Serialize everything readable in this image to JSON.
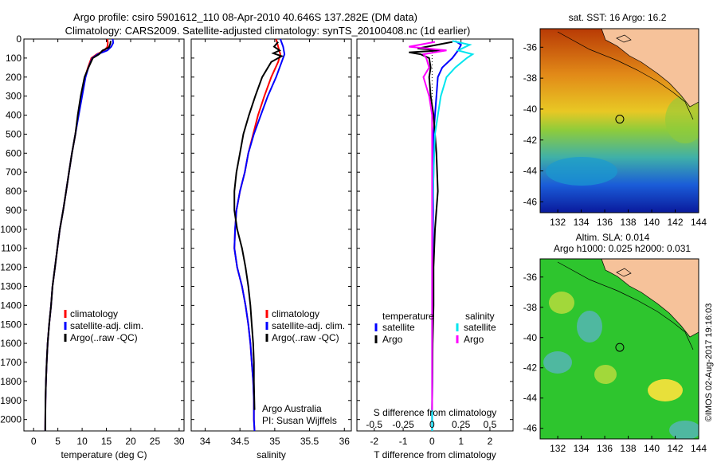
{
  "header": {
    "line1": "Argo profile: csiro 5901612_110 08-Apr-2010 40.646S 137.282E (DM data)",
    "line2": "Climatology: CARS2009. Satellite-adjusted climatology: synTS_20100408.nc (1d earlier)"
  },
  "colors": {
    "climatology": "#ff0000",
    "satellite": "#0000ff",
    "argo": "#000000",
    "satellite_salinity": "#00e5ee",
    "argo_salinity": "#ff00ff"
  },
  "chart_data": [
    {
      "type": "line",
      "xlabel": "temperature (deg C)",
      "ylabel": "",
      "xlim": [
        -2,
        31
      ],
      "ylim": [
        2060,
        0
      ],
      "xticks": [
        0,
        5,
        10,
        15,
        20,
        25,
        30
      ],
      "yticks": [
        0,
        100,
        200,
        300,
        400,
        500,
        600,
        700,
        800,
        900,
        1000,
        1100,
        1200,
        1300,
        1400,
        1500,
        1600,
        1700,
        1800,
        1900,
        2000
      ],
      "legend": [
        "climatology",
        "satellite-adj. clim.",
        "Argo(..raw -QC)"
      ],
      "legend_position": "bottom-right",
      "series": [
        {
          "name": "climatology",
          "color": "#ff0000",
          "x": [
            15.2,
            15.3,
            15.2,
            14.6,
            13.0,
            11.9,
            11.2,
            10.6,
            9.9,
            9.2,
            8.6,
            7.9,
            7.3,
            6.7,
            6.1,
            5.4,
            4.9,
            4.4,
            3.9,
            3.6,
            3.2,
            2.9,
            2.7,
            2.55,
            2.45,
            2.4
          ],
          "y": [
            0,
            20,
            40,
            60,
            80,
            100,
            150,
            200,
            300,
            400,
            500,
            600,
            700,
            800,
            900,
            1000,
            1100,
            1200,
            1300,
            1400,
            1500,
            1600,
            1700,
            1800,
            1900,
            2060
          ]
        },
        {
          "name": "satellite-adj. clim.",
          "color": "#0000ff",
          "x": [
            16.3,
            16.4,
            16.0,
            15.2,
            13.2,
            12.1,
            11.3,
            10.7,
            10.0,
            9.3,
            8.6,
            7.9,
            7.3,
            6.7,
            6.1,
            5.4,
            4.9,
            4.4,
            3.9,
            3.6,
            3.2,
            2.9,
            2.7,
            2.55,
            2.45,
            2.4
          ],
          "y": [
            0,
            20,
            40,
            60,
            80,
            100,
            150,
            200,
            300,
            400,
            500,
            600,
            700,
            800,
            900,
            1000,
            1100,
            1200,
            1300,
            1400,
            1500,
            1600,
            1700,
            1800,
            1900,
            2060
          ]
        },
        {
          "name": "Argo(..raw -QC)",
          "color": "#000000",
          "x": [
            15.9,
            15.8,
            15.5,
            14.2,
            13.5,
            12.2,
            11.3,
            10.5,
            9.7,
            9.1,
            8.6,
            7.9,
            7.3,
            6.7,
            6.1,
            5.4,
            4.9,
            4.4,
            3.9,
            3.6,
            3.2,
            2.9,
            2.7,
            2.55,
            2.45,
            2.4
          ],
          "y": [
            10,
            25,
            45,
            60,
            80,
            100,
            150,
            200,
            300,
            400,
            500,
            600,
            700,
            800,
            900,
            1000,
            1100,
            1200,
            1300,
            1400,
            1500,
            1600,
            1700,
            1800,
            1900,
            2060
          ]
        }
      ]
    },
    {
      "type": "line",
      "xlabel": "salinity",
      "ylabel": "",
      "xlim": [
        33.8,
        36.1
      ],
      "ylim": [
        2060,
        0
      ],
      "xticks": [
        34,
        34.5,
        35,
        35.5,
        36
      ],
      "legend": [
        "climatology",
        "satellite-adj. clim.",
        "Argo(..raw -QC)"
      ],
      "legend_position": "bottom-right",
      "annotation": [
        "Argo Australia",
        "PI: Susan Wijffels"
      ],
      "series": [
        {
          "name": "climatology",
          "color": "#ff0000",
          "x": [
            35.02,
            35.05,
            35.08,
            35.05,
            34.95,
            34.85,
            34.76,
            34.69,
            34.62,
            34.57,
            34.5,
            34.45,
            34.43,
            34.42,
            34.46,
            34.53,
            34.58,
            34.62,
            34.65,
            34.67,
            34.69,
            34.7,
            34.7,
            34.71
          ],
          "y": [
            0,
            40,
            80,
            120,
            200,
            300,
            400,
            500,
            600,
            700,
            800,
            900,
            1000,
            1100,
            1200,
            1300,
            1400,
            1500,
            1600,
            1700,
            1800,
            1900,
            2000,
            2060
          ]
        },
        {
          "name": "satellite-adj. clim.",
          "color": "#0000ff",
          "x": [
            35.08,
            35.12,
            35.14,
            35.1,
            35.02,
            34.9,
            34.8,
            34.7,
            34.62,
            34.57,
            34.5,
            34.45,
            34.43,
            34.42,
            34.46,
            34.53,
            34.58,
            34.62,
            34.65,
            34.67,
            34.69,
            34.7,
            34.7,
            34.71
          ],
          "y": [
            0,
            40,
            80,
            120,
            200,
            300,
            400,
            500,
            600,
            700,
            800,
            900,
            1000,
            1100,
            1200,
            1300,
            1400,
            1500,
            1600,
            1700,
            1800,
            1900,
            2000,
            2060
          ]
        },
        {
          "name": "Argo(..raw -QC)",
          "color": "#000000",
          "x": [
            35.05,
            34.99,
            35.07,
            34.98,
            35.1,
            34.95,
            34.82,
            34.72,
            34.63,
            34.55,
            34.5,
            34.45,
            34.42,
            34.42,
            34.46,
            34.53,
            34.58,
            34.62,
            34.65,
            34.67,
            34.69,
            34.7,
            34.7,
            34.71
          ],
          "y": [
            15,
            40,
            60,
            75,
            90,
            120,
            200,
            300,
            400,
            500,
            600,
            700,
            800,
            900,
            1000,
            1100,
            1200,
            1300,
            1400,
            1500,
            1600,
            1700,
            1800,
            1950
          ]
        }
      ]
    },
    {
      "type": "line",
      "xlabel": "T difference from climatology",
      "xlabel2": "S difference from climatology",
      "ylabel": "",
      "xlim": [
        -2.6,
        2.8
      ],
      "ylim": [
        2060,
        0
      ],
      "xticks": [
        -2,
        -1,
        0,
        1,
        2
      ],
      "xticks2_labels": [
        "-0.5",
        "-0.25",
        "0",
        "0.25",
        "0.5"
      ],
      "legend_titles": [
        "temperature",
        "salinity"
      ],
      "legend": [
        "satellite",
        "Argo",
        "satellite",
        "Argo"
      ],
      "series": [
        {
          "name": "satellite",
          "group": "temperature",
          "color": "#0000ff",
          "x": [
            0.8,
            1.0,
            0.9,
            0.8,
            0.7,
            0.35,
            0.2,
            0.15,
            0.1,
            0.05,
            0.05,
            0.05,
            0.04,
            0.04,
            0.03,
            0.02,
            0.02,
            0.01,
            0.01,
            0.0,
            0.0
          ],
          "y": [
            10,
            30,
            60,
            80,
            100,
            150,
            200,
            300,
            400,
            500,
            600,
            700,
            800,
            900,
            1000,
            1200,
            1400,
            1600,
            1800,
            1950,
            2060
          ]
        },
        {
          "name": "Argo",
          "group": "temperature",
          "color": "#000000",
          "x": [
            0.7,
            -0.5,
            0.3,
            -0.8,
            -0.4,
            -0.1,
            -0.05,
            -0.1,
            -0.05,
            0.05,
            0.1,
            0.15,
            0.2,
            0.15,
            0.1,
            0.05,
            0.05,
            0.02,
            0.01,
            0.0
          ],
          "y": [
            15,
            50,
            60,
            70,
            80,
            100,
            150,
            200,
            300,
            400,
            500,
            600,
            800,
            900,
            1000,
            1200,
            1400,
            1600,
            1800,
            1950
          ]
        },
        {
          "name": "satellite",
          "group": "salinity",
          "color": "#00e5ee",
          "x": [
            0.7,
            1.3,
            0.9,
            1.4,
            1.2,
            0.8,
            0.5,
            0.3,
            0.2,
            0.1,
            0.05,
            0.02,
            0.0,
            0.0
          ],
          "y": [
            10,
            30,
            60,
            80,
            100,
            150,
            200,
            300,
            400,
            500,
            700,
            900,
            1200,
            2060
          ]
        },
        {
          "name": "Argo",
          "group": "salinity",
          "color": "#ff00ff",
          "x": [
            0.1,
            -0.8,
            0.5,
            -0.3,
            -0.2,
            -0.1,
            -0.3,
            -0.1,
            0.0,
            0.0,
            0.0,
            0.0
          ],
          "y": [
            15,
            40,
            60,
            80,
            100,
            150,
            200,
            300,
            400,
            600,
            900,
            1950
          ]
        }
      ]
    },
    {
      "type": "heatmap",
      "title": "sat. SST: 16 Argo: 16.2",
      "xlim": [
        130.5,
        144
      ],
      "ylim": [
        -46.7,
        -34.8
      ],
      "xticks": [
        132,
        134,
        136,
        138,
        140,
        142,
        144
      ],
      "yticks": [
        -36,
        -38,
        -40,
        -42,
        -44,
        -46
      ],
      "marker": {
        "lon": 137.28,
        "lat": -40.65
      }
    },
    {
      "type": "heatmap",
      "title": "Altim. SLA: 0.014",
      "subtitle": "Argo h1000: 0.025 h2000: 0.031",
      "xlim": [
        130.5,
        144
      ],
      "ylim": [
        -46.7,
        -34.8
      ],
      "xticks": [
        132,
        134,
        136,
        138,
        140,
        142,
        144
      ],
      "yticks": [
        -36,
        -38,
        -40,
        -42,
        -44,
        -46
      ],
      "marker": {
        "lon": 137.28,
        "lat": -40.65
      }
    }
  ],
  "credit": "©IMOS 02-Aug-2017 19:16:03"
}
